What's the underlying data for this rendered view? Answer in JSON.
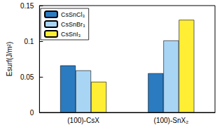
{
  "chart_data": {
    "type": "bar",
    "y_label": "Esurf(J/m²)",
    "categories": [
      "(100)-CsX",
      "(100)-SnX₂"
    ],
    "series": [
      {
        "name": "CsSnCl₃",
        "color": "#2b7bc0",
        "values": [
          0.066,
          0.055
        ]
      },
      {
        "name": "CsSnBr₃",
        "color": "#a9d5f5",
        "values": [
          0.059,
          0.101
        ]
      },
      {
        "name": "CsSnI₃",
        "color": "#ffee33",
        "values": [
          0.043,
          0.13
        ]
      }
    ],
    "ylim": [
      0,
      0.15
    ],
    "yticks": [
      0,
      0.05,
      0.1,
      0.15
    ],
    "grid": false,
    "legend": "upper left"
  }
}
